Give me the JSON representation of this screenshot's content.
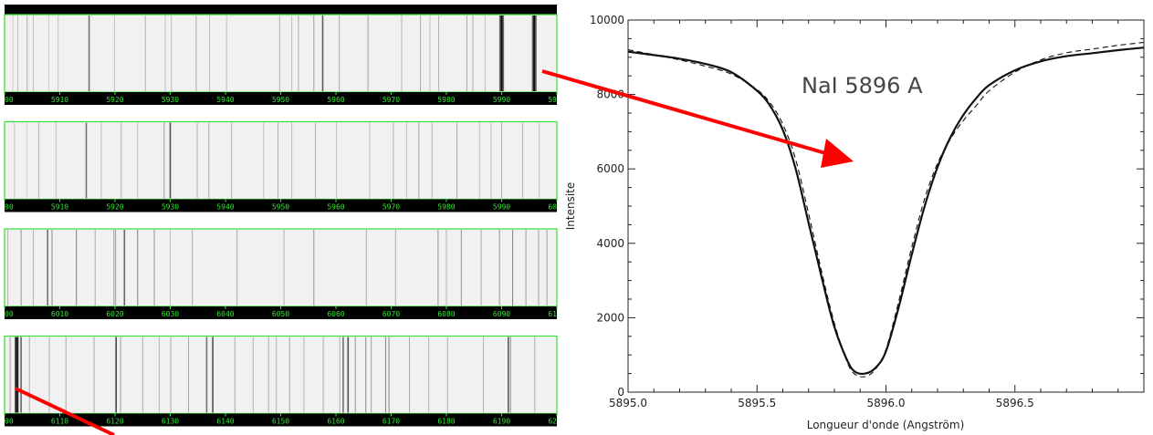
{
  "spectrum_panel": {
    "strips": [
      {
        "tick_labels": [
          "00",
          "5910",
          "5920",
          "5930",
          "5940",
          "5950",
          "5960",
          "5970",
          "5980",
          "5990",
          "59"
        ],
        "lines": [
          [
            5901.5,
            0.15
          ],
          [
            5902.4,
            0.2
          ],
          [
            5904.1,
            0.3
          ],
          [
            5905.2,
            0.2
          ],
          [
            5908.0,
            0.15
          ],
          [
            5909.7,
            0.2
          ],
          [
            5915.3,
            0.55
          ],
          [
            5919.9,
            0.2
          ],
          [
            5925.5,
            0.25
          ],
          [
            5929.1,
            0.2
          ],
          [
            5930.2,
            0.2
          ],
          [
            5934.7,
            0.3
          ],
          [
            5937.1,
            0.2
          ],
          [
            5940.2,
            0.2
          ],
          [
            5949.8,
            0.25
          ],
          [
            5952.0,
            0.2
          ],
          [
            5953.2,
            0.3
          ],
          [
            5956.0,
            0.35
          ],
          [
            5957.6,
            0.65
          ],
          [
            5960.6,
            0.3
          ],
          [
            5965.8,
            0.35
          ],
          [
            5971.9,
            0.25
          ],
          [
            5975.3,
            0.3
          ],
          [
            5977.0,
            0.2
          ],
          [
            5978.6,
            0.25
          ],
          [
            5983.7,
            0.3
          ],
          [
            5984.8,
            0.3
          ],
          [
            5987.0,
            0.2
          ],
          [
            5990.0,
            1.0
          ],
          [
            5989.7,
            0.6
          ],
          [
            5990.3,
            0.6
          ],
          [
            5995.9,
            1.0
          ],
          [
            5995.6,
            0.6
          ],
          [
            5996.2,
            0.6
          ]
        ]
      },
      {
        "tick_labels": [
          "00",
          "5910",
          "5920",
          "5930",
          "5940",
          "5950",
          "5960",
          "5970",
          "5980",
          "5990",
          "60"
        ],
        "lines": [
          [
            5901.8,
            0.2
          ],
          [
            5904.0,
            0.15
          ],
          [
            5906.2,
            0.25
          ],
          [
            5909.3,
            0.2
          ],
          [
            5914.8,
            0.55
          ],
          [
            5917.5,
            0.2
          ],
          [
            5921.1,
            0.25
          ],
          [
            5924.1,
            0.2
          ],
          [
            5928.9,
            0.35
          ],
          [
            5930.0,
            0.7
          ],
          [
            5934.9,
            0.25
          ],
          [
            5937.0,
            0.3
          ],
          [
            5941.1,
            0.25
          ],
          [
            5946.9,
            0.2
          ],
          [
            5949.5,
            0.25
          ],
          [
            5952.0,
            0.2
          ],
          [
            5956.3,
            0.3
          ],
          [
            5960.1,
            0.2
          ],
          [
            5966.1,
            0.2
          ],
          [
            5970.4,
            0.25
          ],
          [
            5972.8,
            0.2
          ],
          [
            5975.0,
            0.3
          ],
          [
            5977.4,
            0.25
          ],
          [
            5981.9,
            0.3
          ],
          [
            5986.0,
            0.2
          ],
          [
            5988.1,
            0.2
          ],
          [
            5990.0,
            0.3
          ],
          [
            5993.8,
            0.25
          ],
          [
            5996.8,
            0.2
          ]
        ]
      },
      {
        "tick_labels": [
          "00",
          "6010",
          "6020",
          "6030",
          "6040",
          "6050",
          "6060",
          "6070",
          "6080",
          "6090",
          "61"
        ],
        "lines": [
          [
            6000.6,
            0.25
          ],
          [
            6003.0,
            0.4
          ],
          [
            6005.2,
            0.25
          ],
          [
            6007.8,
            0.55
          ],
          [
            6008.6,
            0.45
          ],
          [
            6013.0,
            0.5
          ],
          [
            6016.4,
            0.3
          ],
          [
            6019.8,
            0.35
          ],
          [
            6020.1,
            0.35
          ],
          [
            6021.7,
            0.6
          ],
          [
            6024.1,
            0.5
          ],
          [
            6027.1,
            0.4
          ],
          [
            6030.0,
            0.2
          ],
          [
            6034.0,
            0.3
          ],
          [
            6042.1,
            0.3
          ],
          [
            6050.6,
            0.25
          ],
          [
            6056.0,
            0.4
          ],
          [
            6065.5,
            0.3
          ],
          [
            6070.8,
            0.3
          ],
          [
            6078.5,
            0.4
          ],
          [
            6080.0,
            0.25
          ],
          [
            6082.7,
            0.4
          ],
          [
            6086.3,
            0.3
          ],
          [
            6089.6,
            0.4
          ],
          [
            6092.0,
            0.5
          ],
          [
            6094.4,
            0.35
          ],
          [
            6096.7,
            0.35
          ],
          [
            6098.2,
            0.35
          ]
        ]
      },
      {
        "tick_labels": [
          "00",
          "6110",
          "6120",
          "6130",
          "6140",
          "6150",
          "6160",
          "6170",
          "6180",
          "6190",
          "62"
        ],
        "lines": [
          [
            6101.0,
            0.35
          ],
          [
            6102.2,
            0.9
          ],
          [
            6103.0,
            0.6
          ],
          [
            6104.5,
            0.3
          ],
          [
            6108.1,
            0.25
          ],
          [
            6111.1,
            0.3
          ],
          [
            6116.2,
            0.3
          ],
          [
            6120.2,
            0.75
          ],
          [
            6121.0,
            0.35
          ],
          [
            6125.0,
            0.3
          ],
          [
            6128.0,
            0.25
          ],
          [
            6130.1,
            0.3
          ],
          [
            6133.3,
            0.3
          ],
          [
            6136.6,
            0.55
          ],
          [
            6137.7,
            0.7
          ],
          [
            6141.7,
            0.3
          ],
          [
            6145.0,
            0.25
          ],
          [
            6147.8,
            0.3
          ],
          [
            6149.2,
            0.25
          ],
          [
            6151.6,
            0.3
          ],
          [
            6154.2,
            0.25
          ],
          [
            6157.7,
            0.3
          ],
          [
            6160.7,
            0.3
          ],
          [
            6161.3,
            0.55
          ],
          [
            6162.2,
            0.7
          ],
          [
            6163.5,
            0.4
          ],
          [
            6165.4,
            0.45
          ],
          [
            6166.4,
            0.35
          ],
          [
            6169.0,
            0.5
          ],
          [
            6169.6,
            0.45
          ],
          [
            6173.3,
            0.3
          ],
          [
            6176.8,
            0.25
          ],
          [
            6180.2,
            0.3
          ],
          [
            6186.7,
            0.25
          ],
          [
            6191.2,
            0.65
          ],
          [
            6191.6,
            0.45
          ],
          [
            6196.0,
            0.3
          ]
        ]
      }
    ]
  },
  "chart_data": {
    "type": "line",
    "title": "",
    "annotation": "NaI 5896 A",
    "xlabel": "Longueur d'onde (Angström)",
    "ylabel": "Intensite",
    "xlim": [
      5895.0,
      5897.0
    ],
    "ylim": [
      0,
      10000
    ],
    "x_tick_labels": [
      "5895.0",
      "5895.5",
      "5896.0",
      "5896.5"
    ],
    "y_tick_labels": [
      "0",
      "2000",
      "4000",
      "6000",
      "8000",
      "10000"
    ],
    "grid": false,
    "series": [
      {
        "style": "solid",
        "x": [
          5895.0,
          5895.1,
          5895.2,
          5895.3,
          5895.4,
          5895.5,
          5895.55,
          5895.6,
          5895.65,
          5895.7,
          5895.75,
          5895.8,
          5895.85,
          5895.88,
          5895.92,
          5895.96,
          5896.0,
          5896.05,
          5896.1,
          5896.15,
          5896.2,
          5896.25,
          5896.3,
          5896.35,
          5896.4,
          5896.5,
          5896.6,
          5896.7,
          5896.8,
          5896.9,
          5897.0
        ],
        "values": [
          9150,
          9060,
          8960,
          8820,
          8600,
          8100,
          7700,
          7050,
          6000,
          4550,
          3100,
          1750,
          850,
          550,
          500,
          660,
          1100,
          2300,
          3700,
          5000,
          6050,
          6850,
          7450,
          7900,
          8250,
          8650,
          8890,
          9030,
          9110,
          9190,
          9260
        ]
      },
      {
        "style": "dashed",
        "x": [
          5895.0,
          5895.1,
          5895.2,
          5895.3,
          5895.4,
          5895.5,
          5895.55,
          5895.6,
          5895.65,
          5895.7,
          5895.75,
          5895.8,
          5895.85,
          5895.88,
          5895.92,
          5895.96,
          5896.0,
          5896.05,
          5896.1,
          5896.15,
          5896.2,
          5896.25,
          5896.3,
          5896.35,
          5896.4,
          5896.5,
          5896.6,
          5896.7,
          5896.8,
          5896.9,
          5897.0
        ],
        "values": [
          9200,
          9070,
          8930,
          8760,
          8550,
          8130,
          7780,
          7200,
          6250,
          4800,
          3250,
          1850,
          800,
          480,
          420,
          620,
          1150,
          2450,
          3900,
          5200,
          6150,
          6800,
          7300,
          7700,
          8100,
          8600,
          8930,
          9120,
          9220,
          9320,
          9400
        ]
      }
    ]
  },
  "arrows_color": "#ff0000"
}
